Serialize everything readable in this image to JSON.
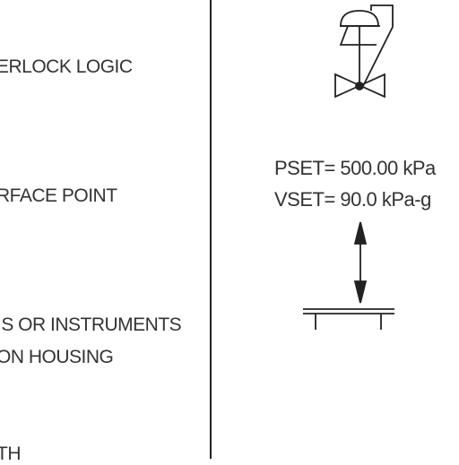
{
  "legend": {
    "line1": "ERLOCK LOGIC",
    "line2": "RFACE POINT",
    "line3a": "IS OR INSTRUMENTS",
    "line3b": "ON HOUSING",
    "line4": "TH"
  },
  "valve": {
    "pset": "PSET= 500.00 kPa",
    "vset": "VSET= 90.0 kPa-g"
  }
}
